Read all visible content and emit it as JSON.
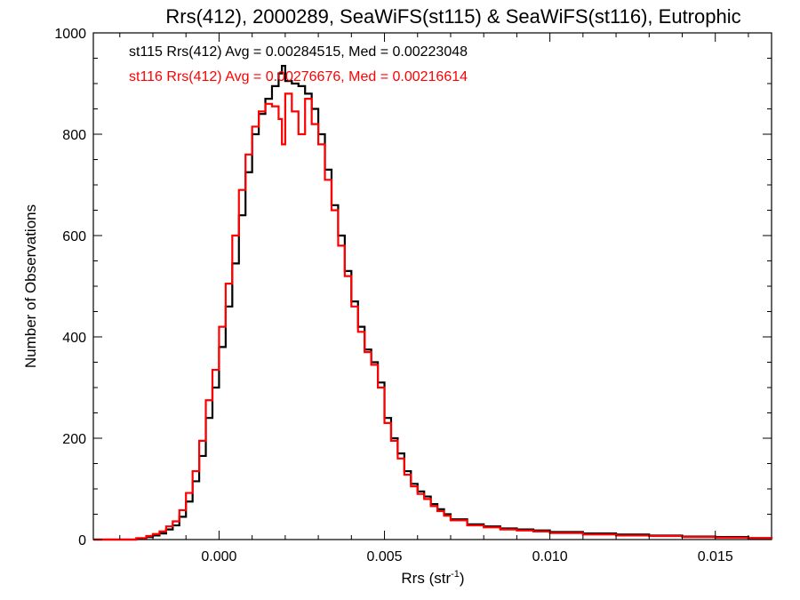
{
  "chart_data": {
    "type": "line",
    "title": "Rrs(412), 2000289, SeaWiFS(st115) & SeaWiFS(st116), Eutrophic",
    "xlabel": "Rrs (str",
    "xlabel_sup": "-1",
    "xlabel_close": ")",
    "ylabel": "Number of Observations",
    "xlim": [
      -0.0038,
      0.0167
    ],
    "ylim": [
      0,
      1000
    ],
    "x_ticks": [
      0.0,
      0.005,
      0.01,
      0.015
    ],
    "x_tick_labels": [
      "0.000",
      "0.005",
      "0.010",
      "0.015"
    ],
    "y_ticks": [
      0,
      200,
      400,
      600,
      800,
      1000
    ],
    "y_tick_labels": [
      "0",
      "200",
      "400",
      "600",
      "800",
      "1000"
    ],
    "grid": false,
    "annotations": [
      {
        "text": "st115 Rrs(412) Avg = 0.00284515, Med = 0.00223048",
        "color": "#000000"
      },
      {
        "text": "st116 Rrs(412) Avg = 0.00276676, Med = 0.00216614",
        "color": "#ff0000"
      }
    ],
    "series": [
      {
        "name": "st115",
        "color": "#000000",
        "x": [
          -0.0038,
          -0.003,
          -0.0025,
          -0.0022,
          -0.002,
          -0.0018,
          -0.0016,
          -0.0014,
          -0.0012,
          -0.001,
          -0.0008,
          -0.0006,
          -0.0004,
          -0.0002,
          0.0,
          0.0002,
          0.0004,
          0.0006,
          0.0008,
          0.001,
          0.0012,
          0.0014,
          0.0016,
          0.0018,
          0.0019,
          0.002,
          0.0022,
          0.0024,
          0.0026,
          0.0028,
          0.003,
          0.0032,
          0.0034,
          0.0036,
          0.0038,
          0.004,
          0.0042,
          0.0044,
          0.0046,
          0.0048,
          0.005,
          0.0052,
          0.0054,
          0.0056,
          0.0058,
          0.006,
          0.0062,
          0.0064,
          0.0066,
          0.0068,
          0.007,
          0.0075,
          0.008,
          0.0085,
          0.009,
          0.0095,
          0.01,
          0.011,
          0.012,
          0.013,
          0.014,
          0.015,
          0.016,
          0.0167
        ],
        "y": [
          0,
          0,
          2,
          5,
          8,
          12,
          20,
          28,
          45,
          75,
          115,
          165,
          240,
          300,
          380,
          460,
          545,
          640,
          725,
          800,
          840,
          870,
          895,
          920,
          935,
          905,
          900,
          895,
          880,
          850,
          800,
          730,
          660,
          600,
          530,
          470,
          420,
          375,
          350,
          310,
          240,
          200,
          170,
          135,
          110,
          95,
          85,
          70,
          60,
          50,
          40,
          30,
          26,
          22,
          20,
          18,
          15,
          12,
          10,
          8,
          6,
          5,
          3,
          2
        ]
      },
      {
        "name": "st116",
        "color": "#ff0000",
        "x": [
          -0.0038,
          -0.003,
          -0.0025,
          -0.0022,
          -0.002,
          -0.0018,
          -0.0016,
          -0.0014,
          -0.0012,
          -0.001,
          -0.0008,
          -0.0006,
          -0.0004,
          -0.0002,
          0.0,
          0.0002,
          0.0004,
          0.0006,
          0.0008,
          0.001,
          0.0012,
          0.0014,
          0.0016,
          0.0018,
          0.0019,
          0.002,
          0.0022,
          0.0024,
          0.0026,
          0.0028,
          0.003,
          0.0032,
          0.0034,
          0.0036,
          0.0038,
          0.004,
          0.0042,
          0.0044,
          0.0046,
          0.0048,
          0.005,
          0.0052,
          0.0054,
          0.0056,
          0.0058,
          0.006,
          0.0062,
          0.0064,
          0.0066,
          0.0068,
          0.007,
          0.0075,
          0.008,
          0.0085,
          0.009,
          0.0095,
          0.01,
          0.011,
          0.012,
          0.013,
          0.014,
          0.015,
          0.016,
          0.0167
        ],
        "y": [
          0,
          0,
          3,
          7,
          11,
          16,
          26,
          36,
          58,
          92,
          135,
          195,
          275,
          335,
          420,
          505,
          600,
          690,
          760,
          815,
          845,
          860,
          855,
          830,
          780,
          880,
          845,
          800,
          870,
          820,
          780,
          710,
          650,
          580,
          520,
          460,
          410,
          370,
          345,
          300,
          230,
          195,
          160,
          128,
          105,
          90,
          80,
          66,
          56,
          47,
          38,
          28,
          24,
          20,
          18,
          16,
          13,
          10,
          8,
          7,
          5,
          4,
          3,
          1
        ]
      }
    ]
  }
}
